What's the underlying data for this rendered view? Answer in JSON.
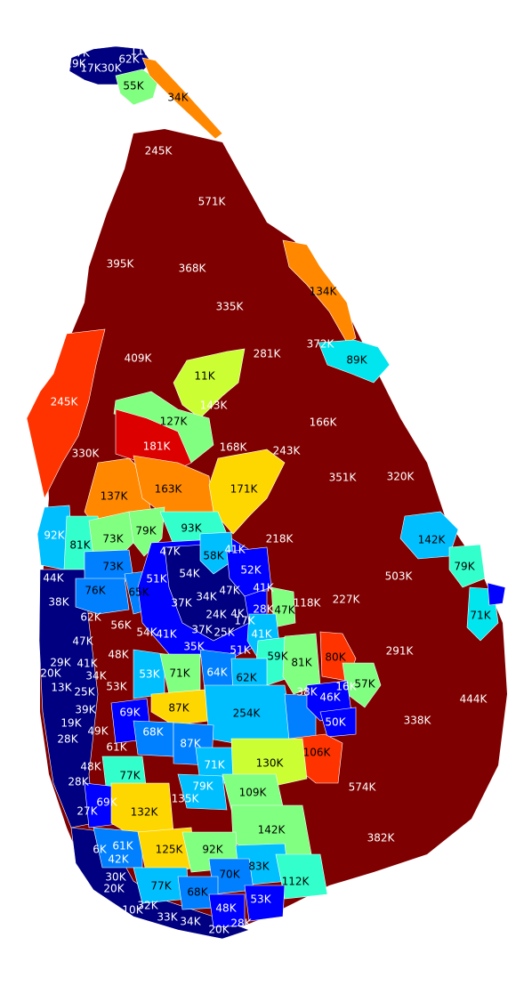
{
  "map": {
    "colors": {
      "dark_red": "#7f0000",
      "red": "#dd0000",
      "red_orange": "#ff3300",
      "orange": "#ff8800",
      "gold": "#ffd700",
      "yellow_green": "#ccff33",
      "light_green": "#80ff80",
      "mint": "#33ffcc",
      "cyan": "#00e5ee",
      "sky": "#00bfff",
      "azure": "#0080ff",
      "blue": "#0000ff",
      "navy": "#000080"
    },
    "labels": [
      "7K",
      "11K",
      "19K",
      "17K",
      "30K",
      "62K",
      "55K",
      "34K",
      "245K",
      "571K",
      "395K",
      "368K",
      "335K",
      "134K",
      "409K",
      "372K",
      "89K",
      "281K",
      "11K",
      "143K",
      "245K",
      "127K",
      "166K",
      "181K",
      "168K",
      "330K",
      "243K",
      "351K",
      "320K",
      "137K",
      "163K",
      "171K",
      "92K",
      "81K",
      "73K",
      "79K",
      "93K",
      "47K",
      "58K",
      "41K",
      "218K",
      "142K",
      "79K",
      "44K",
      "73K",
      "52K",
      "51K",
      "54K",
      "503K",
      "76K",
      "65K",
      "34K",
      "47K",
      "41K",
      "38K",
      "37K",
      "28K",
      "47K",
      "118K",
      "227K",
      "71K",
      "62K",
      "24K",
      "4K",
      "56K",
      "54K",
      "41K",
      "37K",
      "25K",
      "17K",
      "47K",
      "41K",
      "51K",
      "35K",
      "291K",
      "48K",
      "59K",
      "81K",
      "80K",
      "29K",
      "41K",
      "20K",
      "34K",
      "53K",
      "71K",
      "64K",
      "62K",
      "25K",
      "13K",
      "53K",
      "38K",
      "16K",
      "57K",
      "39K",
      "69K",
      "46K",
      "444K",
      "87K",
      "19K",
      "49K",
      "254K",
      "50K",
      "338K",
      "28K",
      "68K",
      "87K",
      "61K",
      "106K",
      "48K",
      "130K",
      "71K",
      "574K",
      "28K",
      "77K",
      "79K",
      "135K",
      "109K",
      "69K",
      "27K",
      "132K",
      "142K",
      "61K",
      "6K",
      "42K",
      "125K",
      "92K",
      "382K",
      "30K",
      "83K",
      "70K",
      "20K",
      "77K",
      "68K",
      "112K",
      "53K",
      "32K",
      "10K",
      "48K",
      "33K",
      "34K",
      "28K",
      "20K"
    ]
  }
}
